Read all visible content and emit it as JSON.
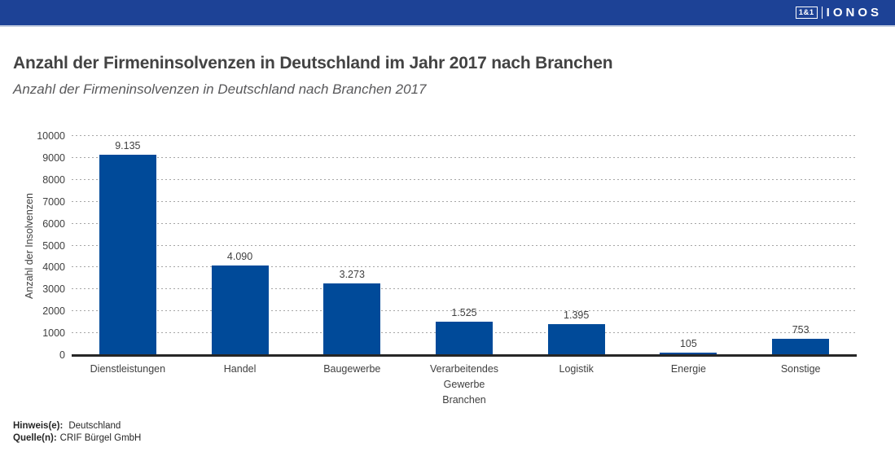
{
  "header": {
    "logo_box": "1&1",
    "logo_text": "IONOS"
  },
  "title": "Anzahl der Firmeninsolvenzen in Deutschland im Jahr 2017 nach Branchen",
  "subtitle": "Anzahl der Firmeninsolvenzen in Deutschland nach Branchen 2017",
  "chart_data": {
    "type": "bar",
    "title": "Anzahl der Firmeninsolvenzen in Deutschland im Jahr 2017 nach Branchen",
    "categories": [
      "Dienstleistungen",
      "Handel",
      "Baugewerbe",
      "Verarbeitendes Gewerbe",
      "Logistik",
      "Energie",
      "Sonstige"
    ],
    "values": [
      9135,
      4090,
      3273,
      1525,
      1395,
      105,
      753
    ],
    "value_labels": [
      "9.135",
      "4.090",
      "3.273",
      "1.525",
      "1.395",
      "105",
      "753"
    ],
    "xlabel": "Branchen",
    "ylabel": "Anzahl der Insolvenzen",
    "ylim": [
      0,
      10000
    ],
    "yticks": [
      0,
      1000,
      2000,
      3000,
      4000,
      5000,
      6000,
      7000,
      8000,
      9000,
      10000
    ],
    "grid": "horizontal-dotted",
    "legend": "none",
    "bar_color": "#004a99"
  },
  "footer": {
    "note_label": "Hinweis(e):",
    "note_value": "Deutschland",
    "source_label": "Quelle(n):",
    "source_value": "CRIF Bürgel GmbH"
  },
  "colors": {
    "header_bg": "#1d4296",
    "bar": "#004a99",
    "gridline": "#a6a6a6",
    "axis_line": "#262626",
    "title_text": "#434343",
    "subtitle_text": "#58585a"
  }
}
